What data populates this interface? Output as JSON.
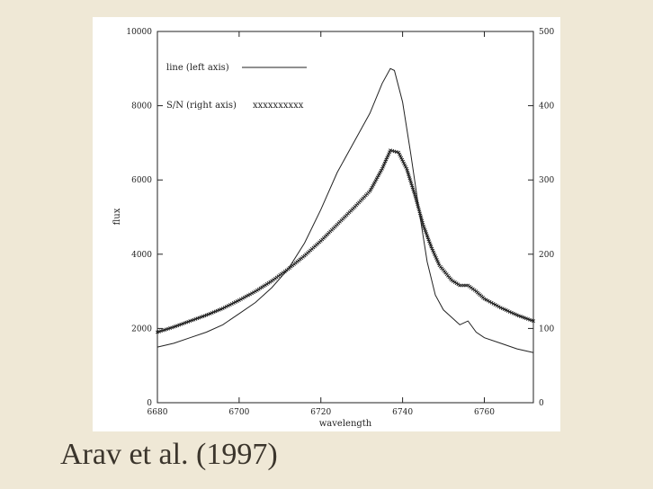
{
  "caption": "Arav et al. (1997)",
  "chart_data": {
    "type": "line",
    "xlabel": "wavelength",
    "ylabel": "flux",
    "x_ticks": [
      6680,
      6700,
      6720,
      6740,
      6760
    ],
    "xlim": [
      6680,
      6772
    ],
    "ylim_left": [
      0,
      10000
    ],
    "ylim_right": [
      0,
      500
    ],
    "y_ticks_left": [
      0,
      2000,
      4000,
      6000,
      8000,
      10000
    ],
    "y_ticks_right": [
      0,
      100,
      200,
      300,
      400,
      500
    ],
    "legend": [
      {
        "label": "line (left axis)",
        "marker": "line"
      },
      {
        "label": "S/N (right axis)",
        "marker": "xxxxxxxxxx"
      }
    ],
    "series": [
      {
        "axis": "left",
        "x": [
          6680,
          6684,
          6688,
          6692,
          6696,
          6700,
          6704,
          6708,
          6712,
          6716,
          6720,
          6724,
          6728,
          6732,
          6735,
          6737,
          6738,
          6740,
          6742,
          6744,
          6746,
          6748,
          6750,
          6752,
          6754,
          6756,
          6758,
          6760,
          6764,
          6768,
          6772
        ],
        "values": [
          1500,
          1600,
          1750,
          1900,
          2100,
          2400,
          2700,
          3100,
          3600,
          4300,
          5200,
          6200,
          7000,
          7800,
          8600,
          9000,
          8950,
          8100,
          6700,
          5200,
          3800,
          2900,
          2500,
          2300,
          2100,
          2200,
          1900,
          1750,
          1600,
          1450,
          1350
        ]
      },
      {
        "axis": "right",
        "x": [
          6680,
          6684,
          6688,
          6692,
          6696,
          6700,
          6704,
          6708,
          6712,
          6716,
          6720,
          6724,
          6728,
          6732,
          6735,
          6737,
          6739,
          6741,
          6743,
          6745,
          6747,
          6749,
          6752,
          6754,
          6756,
          6758,
          6760,
          6764,
          6768,
          6772
        ],
        "values": [
          95,
          102,
          110,
          118,
          127,
          138,
          150,
          164,
          180,
          198,
          218,
          240,
          262,
          285,
          315,
          340,
          337,
          315,
          280,
          240,
          210,
          185,
          165,
          158,
          158,
          150,
          140,
          128,
          118,
          110
        ]
      }
    ]
  }
}
